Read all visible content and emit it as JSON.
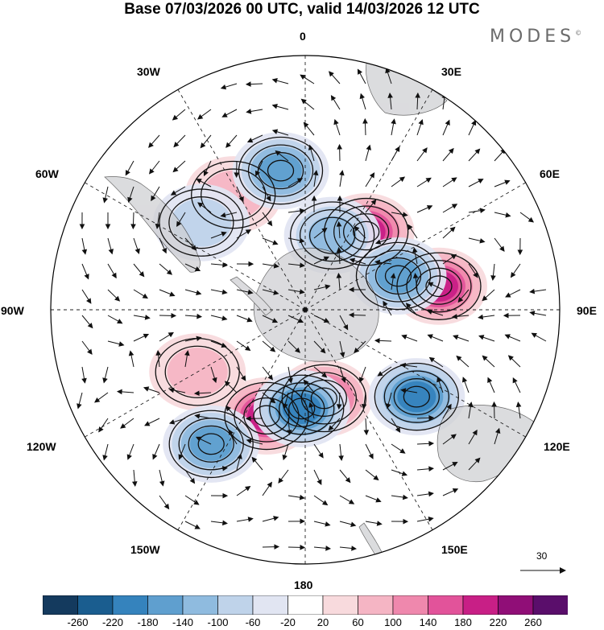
{
  "title": "Base 07/03/2026 00 UTC, valid 14/03/2026 12 UTC",
  "brand": "MODES",
  "brand_mark": "©",
  "longitude_labels": {
    "n0": "0",
    "e30": "30E",
    "e60": "60E",
    "e90": "90E",
    "e120": "120E",
    "e150": "150E",
    "s180": "180",
    "w150": "150W",
    "w120": "120W",
    "w90": "90W",
    "w60": "60W",
    "w30": "30W"
  },
  "reference_vector": "30",
  "colorbar": {
    "ticks": [
      "-260",
      "-220",
      "-180",
      "-140",
      "-100",
      "-60",
      "-20",
      "20",
      "60",
      "100",
      "140",
      "180",
      "220",
      "260"
    ],
    "colors": [
      "#143a5e",
      "#1a5d8f",
      "#3583bd",
      "#5f9fcf",
      "#8fbbdf",
      "#bfd3ea",
      "#e1e5f2",
      "#ffffff",
      "#f8dadd",
      "#f5b5c4",
      "#ef88ad",
      "#e2539a",
      "#c81f86",
      "#900e77",
      "#5a0e6b"
    ]
  },
  "anomalies": [
    {
      "name": "high-east",
      "lon": 80,
      "lat": -42,
      "value": 180
    },
    {
      "name": "high-south-east",
      "lon": 168,
      "lat": -58,
      "value": 140
    },
    {
      "name": "high-west-pacific",
      "lon": -160,
      "lat": -50,
      "value": 180
    },
    {
      "name": "high-east-pacific",
      "lon": -120,
      "lat": -46,
      "value": 90
    },
    {
      "name": "high-atlantic",
      "lon": -32,
      "lat": -42,
      "value": 80
    },
    {
      "name": "high-upper-right",
      "lon": 38,
      "lat": -55,
      "value": 200
    },
    {
      "name": "low-atlantic",
      "lon": -10,
      "lat": -40,
      "value": -140
    },
    {
      "name": "low-weddell",
      "lon": 20,
      "lat": -62,
      "value": -120
    },
    {
      "name": "low-indian",
      "lon": 70,
      "lat": -55,
      "value": -150
    },
    {
      "name": "low-ross",
      "lon": -178,
      "lat": -55,
      "value": -200
    },
    {
      "name": "low-south-east",
      "lon": 128,
      "lat": -40,
      "value": -180
    },
    {
      "name": "low-south-pacific",
      "lon": -145,
      "lat": -32,
      "value": -150
    },
    {
      "name": "low-drake",
      "lon": -50,
      "lat": -42,
      "value": -90
    }
  ]
}
